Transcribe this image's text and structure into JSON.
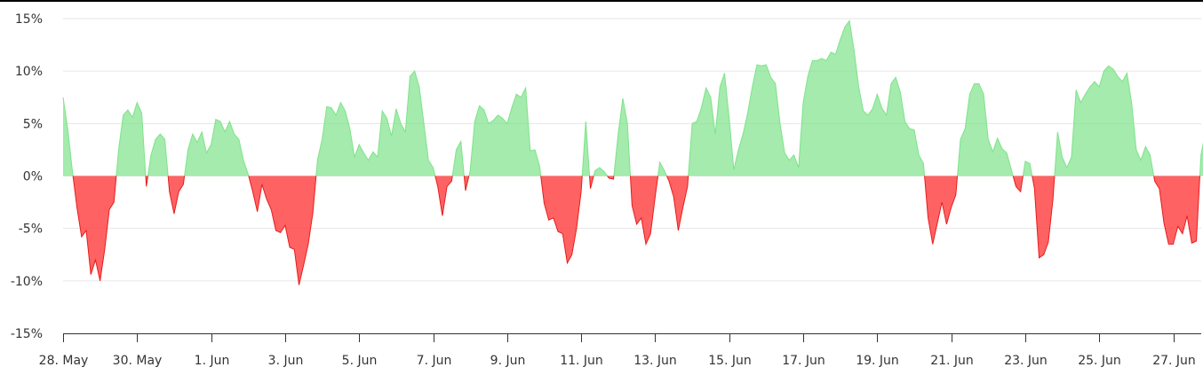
{
  "chart_data": {
    "type": "area",
    "title": "",
    "xlabel": "",
    "ylabel": "",
    "x_start": "2024-05-28",
    "x_end": "2024-06-27",
    "ylim": [
      -15,
      15
    ],
    "yticks": [
      15,
      10,
      5,
      0,
      -5,
      -10,
      -15
    ],
    "ytick_labels": [
      "15%",
      "10%",
      "5%",
      "0%",
      "-5%",
      "-10%",
      "-15%"
    ],
    "xticks": [
      "2024-05-28",
      "2024-05-30",
      "2024-06-01",
      "2024-06-03",
      "2024-06-05",
      "2024-06-07",
      "2024-06-09",
      "2024-06-11",
      "2024-06-13",
      "2024-06-15",
      "2024-06-17",
      "2024-06-19",
      "2024-06-21",
      "2024-06-23",
      "2024-06-25",
      "2024-06-27"
    ],
    "xtick_labels": [
      "28. May",
      "30. May",
      "1. Jun",
      "3. Jun",
      "5. Jun",
      "7. Jun",
      "9. Jun",
      "11. Jun",
      "13. Jun",
      "15. Jun",
      "17. Jun",
      "19. Jun",
      "21. Jun",
      "23. Jun",
      "25. Jun",
      "27. Jun"
    ],
    "grid": true,
    "positive_color": "#7ee38a",
    "negative_color": "#ff3b3b",
    "points": [
      [
        "2024-05-28 00:00",
        7.5
      ],
      [
        "2024-05-28 03:00",
        4.5
      ],
      [
        "2024-05-28 06:00",
        0.5
      ],
      [
        "2024-05-28 09:00",
        -3.0
      ],
      [
        "2024-05-28 12:00",
        -5.8
      ],
      [
        "2024-05-28 15:00",
        -5.2
      ],
      [
        "2024-05-28 18:00",
        -9.4
      ],
      [
        "2024-05-28 21:00",
        -8.0
      ],
      [
        "2024-05-29 00:00",
        -10.0
      ],
      [
        "2024-05-29 03:00",
        -7.0
      ],
      [
        "2024-05-29 06:00",
        -3.2
      ],
      [
        "2024-05-29 09:00",
        -2.5
      ],
      [
        "2024-05-29 12:00",
        2.5
      ],
      [
        "2024-05-29 15:00",
        5.8
      ],
      [
        "2024-05-29 18:00",
        6.3
      ],
      [
        "2024-05-29 21:00",
        5.6
      ],
      [
        "2024-05-30 00:00",
        7.0
      ],
      [
        "2024-05-30 03:00",
        6.0
      ],
      [
        "2024-05-30 06:00",
        -1.0
      ],
      [
        "2024-05-30 09:00",
        2.0
      ],
      [
        "2024-05-30 12:00",
        3.5
      ],
      [
        "2024-05-30 15:00",
        4.0
      ],
      [
        "2024-05-30 18:00",
        3.5
      ],
      [
        "2024-05-30 21:00",
        -1.5
      ],
      [
        "2024-05-31 00:00",
        -3.6
      ],
      [
        "2024-05-31 03:00",
        -1.5
      ],
      [
        "2024-05-31 06:00",
        -0.8
      ],
      [
        "2024-05-31 09:00",
        2.5
      ],
      [
        "2024-05-31 12:00",
        4.0
      ],
      [
        "2024-05-31 15:00",
        3.2
      ],
      [
        "2024-05-31 18:00",
        4.2
      ],
      [
        "2024-05-31 21:00",
        2.2
      ],
      [
        "2024-06-01 00:00",
        3.0
      ],
      [
        "2024-06-01 03:00",
        5.4
      ],
      [
        "2024-06-01 06:00",
        5.2
      ],
      [
        "2024-06-01 09:00",
        4.2
      ],
      [
        "2024-06-01 12:00",
        5.2
      ],
      [
        "2024-06-01 15:00",
        4.0
      ],
      [
        "2024-06-01 18:00",
        3.5
      ],
      [
        "2024-06-01 21:00",
        1.5
      ],
      [
        "2024-06-02 00:00",
        0.2
      ],
      [
        "2024-06-02 03:00",
        -1.5
      ],
      [
        "2024-06-02 06:00",
        -3.4
      ],
      [
        "2024-06-02 09:00",
        -0.8
      ],
      [
        "2024-06-02 12:00",
        -2.2
      ],
      [
        "2024-06-02 15:00",
        -3.2
      ],
      [
        "2024-06-02 18:00",
        -5.2
      ],
      [
        "2024-06-02 21:00",
        -5.4
      ],
      [
        "2024-06-03 00:00",
        -4.7
      ],
      [
        "2024-06-03 03:00",
        -6.8
      ],
      [
        "2024-06-03 06:00",
        -7.0
      ],
      [
        "2024-06-03 09:00",
        -10.4
      ],
      [
        "2024-06-03 12:00",
        -8.5
      ],
      [
        "2024-06-03 15:00",
        -6.5
      ],
      [
        "2024-06-03 18:00",
        -3.5
      ],
      [
        "2024-06-03 21:00",
        1.5
      ],
      [
        "2024-06-04 00:00",
        3.5
      ],
      [
        "2024-06-04 03:00",
        6.6
      ],
      [
        "2024-06-04 06:00",
        6.5
      ],
      [
        "2024-06-04 09:00",
        5.8
      ],
      [
        "2024-06-04 12:00",
        7.0
      ],
      [
        "2024-06-04 15:00",
        6.2
      ],
      [
        "2024-06-04 18:00",
        4.5
      ],
      [
        "2024-06-04 21:00",
        1.8
      ],
      [
        "2024-06-05 00:00",
        3.0
      ],
      [
        "2024-06-05 03:00",
        2.2
      ],
      [
        "2024-06-05 06:00",
        1.5
      ],
      [
        "2024-06-05 09:00",
        2.3
      ],
      [
        "2024-06-05 12:00",
        1.8
      ],
      [
        "2024-06-05 15:00",
        6.2
      ],
      [
        "2024-06-05 18:00",
        5.5
      ],
      [
        "2024-06-05 21:00",
        3.8
      ],
      [
        "2024-06-06 00:00",
        6.4
      ],
      [
        "2024-06-06 03:00",
        5.0
      ],
      [
        "2024-06-06 06:00",
        4.2
      ],
      [
        "2024-06-06 09:00",
        9.5
      ],
      [
        "2024-06-06 12:00",
        10.0
      ],
      [
        "2024-06-06 15:00",
        8.5
      ],
      [
        "2024-06-06 18:00",
        5.0
      ],
      [
        "2024-06-06 21:00",
        1.5
      ],
      [
        "2024-06-07 00:00",
        0.8
      ],
      [
        "2024-06-07 03:00",
        -1.0
      ],
      [
        "2024-06-07 06:00",
        -3.8
      ],
      [
        "2024-06-07 09:00",
        -1.0
      ],
      [
        "2024-06-07 12:00",
        -0.5
      ],
      [
        "2024-06-07 15:00",
        2.5
      ],
      [
        "2024-06-07 18:00",
        3.3
      ],
      [
        "2024-06-07 21:00",
        -1.4
      ],
      [
        "2024-06-08 00:00",
        0.5
      ],
      [
        "2024-06-08 03:00",
        5.2
      ],
      [
        "2024-06-08 06:00",
        6.7
      ],
      [
        "2024-06-08 09:00",
        6.3
      ],
      [
        "2024-06-08 12:00",
        5.0
      ],
      [
        "2024-06-08 15:00",
        5.3
      ],
      [
        "2024-06-08 18:00",
        5.8
      ],
      [
        "2024-06-08 21:00",
        5.5
      ],
      [
        "2024-06-09 00:00",
        5.0
      ],
      [
        "2024-06-09 03:00",
        6.5
      ],
      [
        "2024-06-09 06:00",
        7.8
      ],
      [
        "2024-06-09 09:00",
        7.5
      ],
      [
        "2024-06-09 12:00",
        8.4
      ],
      [
        "2024-06-09 15:00",
        2.4
      ],
      [
        "2024-06-09 18:00",
        2.5
      ],
      [
        "2024-06-09 21:00",
        1.0
      ],
      [
        "2024-06-10 00:00",
        -2.6
      ],
      [
        "2024-06-10 03:00",
        -4.2
      ],
      [
        "2024-06-10 06:00",
        -4.0
      ],
      [
        "2024-06-10 09:00",
        -5.3
      ],
      [
        "2024-06-10 12:00",
        -5.5
      ],
      [
        "2024-06-10 15:00",
        -8.3
      ],
      [
        "2024-06-10 18:00",
        -7.5
      ],
      [
        "2024-06-10 21:00",
        -5.0
      ],
      [
        "2024-06-11 00:00",
        -1.5
      ],
      [
        "2024-06-11 03:00",
        5.2
      ],
      [
        "2024-06-11 06:00",
        -1.2
      ],
      [
        "2024-06-11 09:00",
        0.5
      ],
      [
        "2024-06-11 12:00",
        0.8
      ],
      [
        "2024-06-11 15:00",
        0.4
      ],
      [
        "2024-06-11 18:00",
        -0.2
      ],
      [
        "2024-06-11 21:00",
        -0.3
      ],
      [
        "2024-06-12 00:00",
        4.0
      ],
      [
        "2024-06-12 03:00",
        7.4
      ],
      [
        "2024-06-12 06:00",
        5.0
      ],
      [
        "2024-06-12 09:00",
        -2.8
      ],
      [
        "2024-06-12 12:00",
        -4.6
      ],
      [
        "2024-06-12 15:00",
        -4.0
      ],
      [
        "2024-06-12 18:00",
        -6.5
      ],
      [
        "2024-06-12 21:00",
        -5.5
      ],
      [
        "2024-06-13 00:00",
        -2.0
      ],
      [
        "2024-06-13 03:00",
        1.3
      ],
      [
        "2024-06-13 06:00",
        0.5
      ],
      [
        "2024-06-13 09:00",
        -0.5
      ],
      [
        "2024-06-13 12:00",
        -2.0
      ],
      [
        "2024-06-13 15:00",
        -5.2
      ],
      [
        "2024-06-13 18:00",
        -3.0
      ],
      [
        "2024-06-13 21:00",
        -1.0
      ],
      [
        "2024-06-14 00:00",
        5.0
      ],
      [
        "2024-06-14 03:00",
        5.2
      ],
      [
        "2024-06-14 06:00",
        6.5
      ],
      [
        "2024-06-14 09:00",
        8.4
      ],
      [
        "2024-06-14 12:00",
        7.5
      ],
      [
        "2024-06-14 15:00",
        4.0
      ],
      [
        "2024-06-14 18:00",
        8.5
      ],
      [
        "2024-06-14 21:00",
        9.8
      ],
      [
        "2024-06-15 00:00",
        5.5
      ],
      [
        "2024-06-15 03:00",
        0.6
      ],
      [
        "2024-06-15 06:00",
        2.5
      ],
      [
        "2024-06-15 09:00",
        4.0
      ],
      [
        "2024-06-15 12:00",
        6.0
      ],
      [
        "2024-06-15 15:00",
        8.5
      ],
      [
        "2024-06-15 18:00",
        10.6
      ],
      [
        "2024-06-15 21:00",
        10.5
      ],
      [
        "2024-06-16 00:00",
        10.6
      ],
      [
        "2024-06-16 03:00",
        9.4
      ],
      [
        "2024-06-16 06:00",
        8.8
      ],
      [
        "2024-06-16 09:00",
        5.0
      ],
      [
        "2024-06-16 12:00",
        2.2
      ],
      [
        "2024-06-16 15:00",
        1.5
      ],
      [
        "2024-06-16 18:00",
        2.0
      ],
      [
        "2024-06-16 21:00",
        0.8
      ],
      [
        "2024-06-17 00:00",
        7.0
      ],
      [
        "2024-06-17 03:00",
        9.5
      ],
      [
        "2024-06-17 06:00",
        11.0
      ],
      [
        "2024-06-17 09:00",
        11.0
      ],
      [
        "2024-06-17 12:00",
        11.2
      ],
      [
        "2024-06-17 15:00",
        11.0
      ],
      [
        "2024-06-17 18:00",
        11.8
      ],
      [
        "2024-06-17 21:00",
        11.6
      ],
      [
        "2024-06-18 00:00",
        13.0
      ],
      [
        "2024-06-18 03:00",
        14.2
      ],
      [
        "2024-06-18 06:00",
        14.8
      ],
      [
        "2024-06-18 09:00",
        12.0
      ],
      [
        "2024-06-18 12:00",
        8.5
      ],
      [
        "2024-06-18 15:00",
        6.2
      ],
      [
        "2024-06-18 18:00",
        5.8
      ],
      [
        "2024-06-18 21:00",
        6.4
      ],
      [
        "2024-06-19 00:00",
        7.8
      ],
      [
        "2024-06-19 03:00",
        6.5
      ],
      [
        "2024-06-19 06:00",
        5.8
      ],
      [
        "2024-06-19 09:00",
        8.8
      ],
      [
        "2024-06-19 12:00",
        9.4
      ],
      [
        "2024-06-19 15:00",
        8.0
      ],
      [
        "2024-06-19 18:00",
        5.2
      ],
      [
        "2024-06-19 21:00",
        4.5
      ],
      [
        "2024-06-20 00:00",
        4.4
      ],
      [
        "2024-06-20 03:00",
        2.0
      ],
      [
        "2024-06-20 06:00",
        1.2
      ],
      [
        "2024-06-20 09:00",
        -4.0
      ],
      [
        "2024-06-20 12:00",
        -6.5
      ],
      [
        "2024-06-20 15:00",
        -4.5
      ],
      [
        "2024-06-20 18:00",
        -2.5
      ],
      [
        "2024-06-20 21:00",
        -4.6
      ],
      [
        "2024-06-21 00:00",
        -3.0
      ],
      [
        "2024-06-21 03:00",
        -1.8
      ],
      [
        "2024-06-21 06:00",
        3.5
      ],
      [
        "2024-06-21 09:00",
        4.5
      ],
      [
        "2024-06-21 12:00",
        7.8
      ],
      [
        "2024-06-21 15:00",
        8.8
      ],
      [
        "2024-06-21 18:00",
        8.8
      ],
      [
        "2024-06-21 21:00",
        7.8
      ],
      [
        "2024-06-22 00:00",
        3.5
      ],
      [
        "2024-06-22 03:00",
        2.3
      ],
      [
        "2024-06-22 06:00",
        3.6
      ],
      [
        "2024-06-22 09:00",
        2.6
      ],
      [
        "2024-06-22 12:00",
        2.2
      ],
      [
        "2024-06-22 15:00",
        0.6
      ],
      [
        "2024-06-22 18:00",
        -1.0
      ],
      [
        "2024-06-22 21:00",
        -1.5
      ],
      [
        "2024-06-23 00:00",
        1.4
      ],
      [
        "2024-06-23 03:00",
        1.2
      ],
      [
        "2024-06-23 06:00",
        -1.2
      ],
      [
        "2024-06-23 09:00",
        -7.8
      ],
      [
        "2024-06-23 12:00",
        -7.5
      ],
      [
        "2024-06-23 15:00",
        -6.3
      ],
      [
        "2024-06-23 18:00",
        -2.2
      ],
      [
        "2024-06-23 21:00",
        4.2
      ],
      [
        "2024-06-24 00:00",
        1.8
      ],
      [
        "2024-06-24 03:00",
        0.8
      ],
      [
        "2024-06-24 06:00",
        1.8
      ],
      [
        "2024-06-24 09:00",
        8.2
      ],
      [
        "2024-06-24 12:00",
        7.0
      ],
      [
        "2024-06-24 15:00",
        7.8
      ],
      [
        "2024-06-24 18:00",
        8.5
      ],
      [
        "2024-06-24 21:00",
        9.0
      ],
      [
        "2024-06-25 00:00",
        8.5
      ],
      [
        "2024-06-25 03:00",
        10.0
      ],
      [
        "2024-06-25 06:00",
        10.5
      ],
      [
        "2024-06-25 09:00",
        10.2
      ],
      [
        "2024-06-25 12:00",
        9.5
      ],
      [
        "2024-06-25 15:00",
        9.0
      ],
      [
        "2024-06-25 18:00",
        9.8
      ],
      [
        "2024-06-25 21:00",
        7.0
      ],
      [
        "2024-06-26 00:00",
        2.5
      ],
      [
        "2024-06-26 03:00",
        1.5
      ],
      [
        "2024-06-26 06:00",
        2.8
      ],
      [
        "2024-06-26 09:00",
        2.0
      ],
      [
        "2024-06-26 12:00",
        -0.5
      ],
      [
        "2024-06-26 15:00",
        -1.2
      ],
      [
        "2024-06-26 18:00",
        -4.5
      ],
      [
        "2024-06-26 21:00",
        -6.5
      ],
      [
        "2024-06-27 00:00",
        -6.5
      ],
      [
        "2024-06-27 03:00",
        -4.8
      ],
      [
        "2024-06-27 06:00",
        -5.5
      ],
      [
        "2024-06-27 09:00",
        -3.8
      ],
      [
        "2024-06-27 12:00",
        -6.4
      ],
      [
        "2024-06-27 15:00",
        -6.2
      ],
      [
        "2024-06-27 18:00",
        2.0
      ],
      [
        "2024-06-27 21:00",
        4.3
      ],
      [
        "2024-06-27 23:30",
        4.5
      ]
    ]
  }
}
